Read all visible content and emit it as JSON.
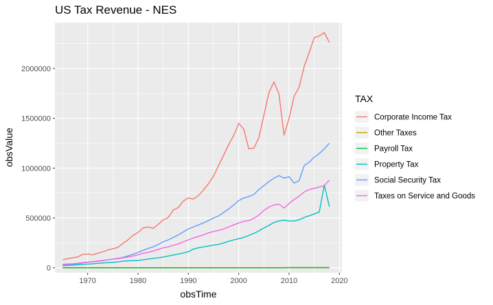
{
  "chart_data": {
    "type": "line",
    "title": "US Tax Revenue - NES",
    "xlabel": "obsTime",
    "ylabel": "obsValue",
    "xlim": [
      1963.5,
      2020.5
    ],
    "ylim": [
      -50000,
      2460000
    ],
    "x_ticks": [
      1970,
      1980,
      1990,
      2000,
      2010,
      2020
    ],
    "y_ticks": [
      0,
      500000,
      1000000,
      1500000,
      2000000
    ],
    "y_tick_labels": [
      "0",
      "500000",
      "1000000",
      "1500000",
      "2000000"
    ],
    "grid": true,
    "legend": {
      "title": "TAX",
      "position": "right"
    },
    "x": [
      1965,
      1966,
      1967,
      1968,
      1969,
      1970,
      1971,
      1972,
      1973,
      1974,
      1975,
      1976,
      1977,
      1978,
      1979,
      1980,
      1981,
      1982,
      1983,
      1984,
      1985,
      1986,
      1987,
      1988,
      1989,
      1990,
      1991,
      1992,
      1993,
      1994,
      1995,
      1996,
      1997,
      1998,
      1999,
      2000,
      2001,
      2002,
      2003,
      2004,
      2005,
      2006,
      2007,
      2008,
      2009,
      2010,
      2011,
      2012,
      2013,
      2014,
      2015,
      2016,
      2017,
      2018
    ],
    "series": [
      {
        "name": "Corporate Income Tax",
        "color": "#F8766D",
        "values": [
          80000,
          92000,
          100000,
          108000,
          135000,
          138000,
          130000,
          145000,
          160000,
          180000,
          190000,
          205000,
          245000,
          280000,
          325000,
          355000,
          400000,
          410000,
          395000,
          435000,
          480000,
          505000,
          580000,
          605000,
          670000,
          700000,
          690000,
          725000,
          780000,
          845000,
          920000,
          1025000,
          1130000,
          1235000,
          1325000,
          1450000,
          1390000,
          1195000,
          1200000,
          1305000,
          1530000,
          1760000,
          1865000,
          1745000,
          1330000,
          1500000,
          1720000,
          1815000,
          2020000,
          2160000,
          2310000,
          2325000,
          2360000,
          2260000
        ]
      },
      {
        "name": "Other Taxes",
        "color": "#B79F00",
        "values": [
          1000,
          1000,
          1000,
          1000,
          1000,
          1000,
          1000,
          1000,
          1000,
          1000,
          1000,
          1000,
          1000,
          1000,
          1000,
          1000,
          1000,
          1000,
          1000,
          1000,
          1000,
          1000,
          1000,
          1000,
          1000,
          1000,
          1000,
          1000,
          1000,
          1000,
          1000,
          1000,
          1000,
          1000,
          1000,
          1000,
          1000,
          1000,
          1000,
          1000,
          1000,
          1000,
          1000,
          1000,
          1000,
          1000,
          1000,
          1000,
          1000,
          1000,
          1000,
          1000,
          1000,
          1000
        ]
      },
      {
        "name": "Payroll Tax",
        "color": "#00BA38",
        "values": [
          0,
          0,
          0,
          0,
          0,
          0,
          0,
          0,
          0,
          0,
          0,
          0,
          0,
          0,
          0,
          0,
          0,
          0,
          0,
          0,
          0,
          0,
          0,
          0,
          0,
          0,
          0,
          0,
          0,
          0,
          0,
          0,
          0,
          0,
          0,
          0,
          0,
          0,
          0,
          0,
          0,
          0,
          0,
          0,
          0,
          2000,
          2000,
          2000,
          2000,
          2000,
          2000,
          2000,
          2000,
          2000
        ]
      },
      {
        "name": "Property Tax",
        "color": "#00BFC4",
        "values": [
          22000,
          24000,
          27000,
          30000,
          34000,
          37000,
          40000,
          44000,
          48000,
          52000,
          55000,
          59000,
          66000,
          70000,
          72000,
          74000,
          80000,
          88000,
          94000,
          100000,
          108000,
          118000,
          128000,
          138000,
          148000,
          162000,
          188000,
          200000,
          210000,
          218000,
          228000,
          235000,
          250000,
          265000,
          280000,
          292000,
          305000,
          325000,
          345000,
          370000,
          400000,
          425000,
          455000,
          470000,
          478000,
          470000,
          470000,
          482000,
          505000,
          522000,
          540000,
          560000,
          830000,
          615000
        ]
      },
      {
        "name": "Social Security Tax",
        "color": "#619CFF",
        "values": [
          25000,
          30000,
          35000,
          40000,
          48000,
          55000,
          60000,
          65000,
          72000,
          80000,
          88000,
          95000,
          105000,
          120000,
          135000,
          155000,
          175000,
          195000,
          210000,
          235000,
          260000,
          280000,
          305000,
          330000,
          360000,
          390000,
          410000,
          430000,
          450000,
          475000,
          500000,
          520000,
          555000,
          590000,
          630000,
          675000,
          700000,
          715000,
          735000,
          785000,
          825000,
          865000,
          900000,
          925000,
          900000,
          915000,
          850000,
          875000,
          1025000,
          1060000,
          1110000,
          1145000,
          1195000,
          1250000
        ]
      },
      {
        "name": "Taxes on Service and Goods",
        "color": "#F564E3",
        "values": [
          35000,
          38000,
          40000,
          45000,
          52000,
          57000,
          62000,
          68000,
          74000,
          80000,
          86000,
          92000,
          100000,
          108000,
          118000,
          130000,
          145000,
          155000,
          168000,
          185000,
          200000,
          210000,
          225000,
          240000,
          260000,
          280000,
          300000,
          315000,
          332000,
          350000,
          365000,
          375000,
          390000,
          410000,
          430000,
          450000,
          465000,
          475000,
          495000,
          530000,
          575000,
          610000,
          630000,
          638000,
          600000,
          645000,
          685000,
          720000,
          760000,
          785000,
          798000,
          810000,
          825000,
          880000
        ]
      }
    ]
  }
}
